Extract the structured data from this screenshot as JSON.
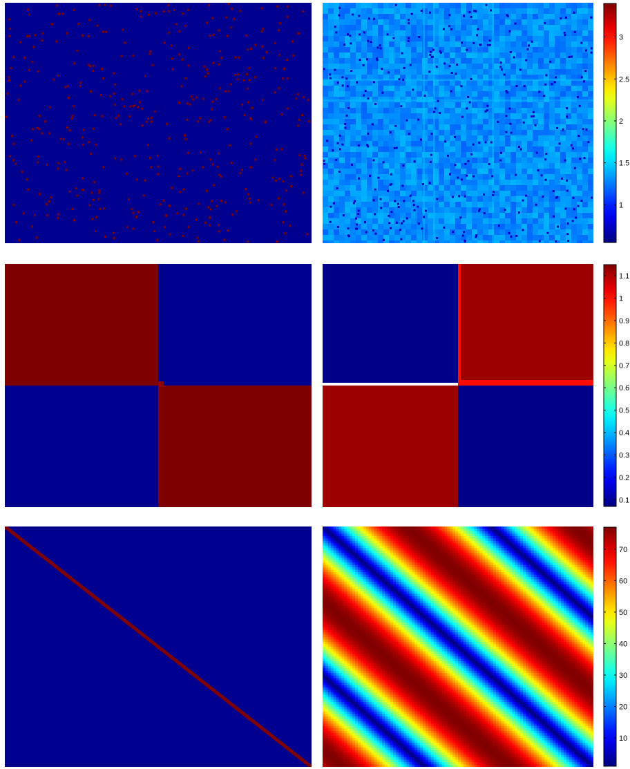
{
  "chart_data": [
    {
      "type": "heatmap",
      "description_row": 1,
      "left_panel": {
        "pattern": "sparse-random",
        "background": "#00008f",
        "dots": "#7f0000",
        "dot_count": 420
      },
      "right_panel": {
        "pattern": "noise",
        "base_value": 1.3,
        "dots_value": 0.75,
        "dot_count": 360
      },
      "colorbar": {
        "range": [
          0.55,
          3.4
        ],
        "ticks": [
          "1",
          "1.5",
          "2",
          "2.5",
          "3"
        ],
        "tick_values": [
          1,
          1.5,
          2,
          2.5,
          3
        ]
      }
    },
    {
      "type": "heatmap",
      "description_row": 2,
      "left_panel": {
        "pattern": "block-diagonal",
        "high": "#7f0000",
        "low": "#00008f"
      },
      "right_panel": {
        "pattern": "block-anti-diagonal",
        "high_value": 1.12,
        "low_value": 0.08,
        "edge_value": 1.0
      },
      "colorbar": {
        "range": [
          0.07,
          1.15
        ],
        "ticks": [
          "0.1",
          "0.2",
          "0.3",
          "0.4",
          "0.5",
          "0.6",
          "0.7",
          "0.8",
          "0.9",
          "1",
          "1.1"
        ],
        "tick_values": [
          0.1,
          0.2,
          0.3,
          0.4,
          0.5,
          0.6,
          0.7,
          0.8,
          0.9,
          1.0,
          1.1
        ]
      }
    },
    {
      "type": "heatmap",
      "description_row": 3,
      "left_panel": {
        "pattern": "identity-diagonal",
        "high": "#7f0000",
        "low": "#00008f"
      },
      "right_panel": {
        "pattern": "periodic-distance",
        "min": 0,
        "max": 77
      },
      "colorbar": {
        "range": [
          1,
          77
        ],
        "ticks": [
          "10",
          "20",
          "30",
          "40",
          "50",
          "60",
          "70"
        ],
        "tick_values": [
          10,
          20,
          30,
          40,
          50,
          60,
          70
        ]
      }
    }
  ]
}
